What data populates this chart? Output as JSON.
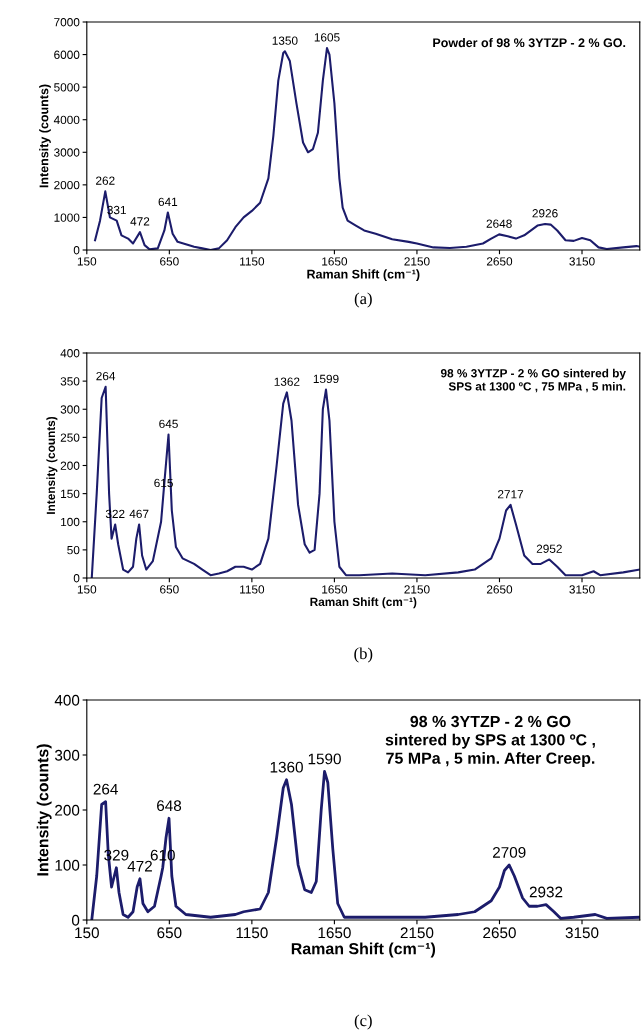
{
  "chart_data": [
    {
      "type": "line",
      "title": "Powder of 98 % 3YTZP - 2 % GO.",
      "xlabel": "Raman Shift (cm⁻¹)",
      "ylabel": "Intensity (counts)",
      "xlim": [
        150,
        3500
      ],
      "xticks": [
        150,
        650,
        1150,
        1650,
        2150,
        2650,
        3150
      ],
      "ylim": [
        0,
        7000
      ],
      "yticks": [
        0,
        1000,
        2000,
        3000,
        4000,
        5000,
        6000,
        7000
      ],
      "grid": false,
      "legend": false,
      "marker": "none",
      "line_style": "solid",
      "series": [
        {
          "color": "#1c1c6b",
          "x": [
            200,
            230,
            262,
            290,
            331,
            360,
            400,
            430,
            472,
            500,
            530,
            580,
            620,
            641,
            670,
            700,
            750,
            800,
            850,
            900,
            950,
            1000,
            1050,
            1100,
            1150,
            1200,
            1250,
            1280,
            1310,
            1340,
            1350,
            1380,
            1420,
            1460,
            1490,
            1520,
            1550,
            1580,
            1605,
            1620,
            1650,
            1680,
            1700,
            1730,
            1780,
            1830,
            1900,
            2000,
            2100,
            2150,
            2250,
            2350,
            2450,
            2550,
            2600,
            2648,
            2700,
            2750,
            2800,
            2880,
            2926,
            2960,
            3000,
            3050,
            3100,
            3150,
            3200,
            3250,
            3300,
            3400,
            3480,
            3500
          ],
          "values": [
            300,
            900,
            1800,
            1000,
            900,
            450,
            350,
            200,
            550,
            150,
            20,
            50,
            600,
            1150,
            500,
            250,
            180,
            100,
            50,
            0,
            50,
            300,
            700,
            1000,
            1200,
            1450,
            2200,
            3500,
            5200,
            6050,
            6100,
            5800,
            4500,
            3300,
            3000,
            3100,
            3600,
            5200,
            6200,
            6000,
            4500,
            2200,
            1300,
            900,
            750,
            600,
            500,
            330,
            250,
            200,
            80,
            60,
            100,
            200,
            350,
            480,
            420,
            350,
            450,
            750,
            800,
            780,
            600,
            300,
            280,
            370,
            300,
            80,
            30,
            80,
            120,
            100
          ]
        }
      ],
      "annotations": [
        "(a)",
        {
          "text": "262",
          "x": 262,
          "y": 1800
        },
        {
          "text": "331",
          "x": 331,
          "y": 900
        },
        {
          "text": "472",
          "x": 472,
          "y": 550
        },
        {
          "text": "641",
          "x": 641,
          "y": 1150
        },
        {
          "text": "1350",
          "x": 1350,
          "y": 6100
        },
        {
          "text": "1605",
          "x": 1605,
          "y": 6200
        },
        {
          "text": "2648",
          "x": 2648,
          "y": 480
        },
        {
          "text": "2926",
          "x": 2926,
          "y": 800
        }
      ]
    },
    {
      "type": "line",
      "title": "98 % 3YTZP - 2 % GO sintered by\nSPS at 1300 ºC , 75 MPa , 5 min.",
      "xlabel": "Raman Shift (cm⁻¹)",
      "ylabel": "Intensity (counts)",
      "xlim": [
        150,
        3500
      ],
      "xticks": [
        150,
        650,
        1150,
        1650,
        2150,
        2650,
        3150
      ],
      "ylim": [
        0,
        400
      ],
      "yticks": [
        0,
        50,
        100,
        150,
        200,
        250,
        300,
        350,
        400
      ],
      "grid": false,
      "legend": false,
      "marker": "none",
      "line_style": "solid",
      "series": [
        {
          "color": "#1c1c6b",
          "x": [
            180,
            210,
            240,
            264,
            285,
            300,
            322,
            340,
            370,
            400,
            430,
            450,
            467,
            485,
            510,
            550,
            600,
            620,
            645,
            665,
            690,
            730,
            800,
            850,
            900,
            950,
            1000,
            1050,
            1100,
            1150,
            1200,
            1250,
            1300,
            1340,
            1362,
            1390,
            1430,
            1470,
            1500,
            1530,
            1560,
            1580,
            1599,
            1620,
            1650,
            1680,
            1720,
            1800,
            2000,
            2200,
            2400,
            2500,
            2600,
            2650,
            2690,
            2717,
            2750,
            2800,
            2850,
            2900,
            2952,
            3000,
            3050,
            3150,
            3220,
            3260,
            3400,
            3500
          ],
          "values": [
            0,
            150,
            320,
            340,
            150,
            70,
            95,
            60,
            15,
            10,
            20,
            70,
            95,
            40,
            15,
            30,
            100,
            170,
            255,
            120,
            55,
            35,
            25,
            15,
            5,
            8,
            12,
            20,
            20,
            15,
            25,
            70,
            200,
            310,
            330,
            280,
            130,
            60,
            45,
            50,
            150,
            300,
            335,
            280,
            100,
            20,
            5,
            5,
            8,
            5,
            10,
            15,
            35,
            70,
            120,
            130,
            95,
            40,
            25,
            25,
            33,
            20,
            5,
            5,
            12,
            5,
            10,
            15
          ]
        }
      ],
      "annotations": [
        "(b)",
        {
          "text": "264",
          "x": 264,
          "y": 340
        },
        {
          "text": "322",
          "x": 322,
          "y": 95
        },
        {
          "text": "467",
          "x": 467,
          "y": 95
        },
        {
          "text": "615",
          "x": 615,
          "y": 150
        },
        {
          "text": "645",
          "x": 645,
          "y": 255
        },
        {
          "text": "1362",
          "x": 1362,
          "y": 330
        },
        {
          "text": "1599",
          "x": 1599,
          "y": 335
        },
        {
          "text": "2717",
          "x": 2717,
          "y": 130
        },
        {
          "text": "2952",
          "x": 2952,
          "y": 33
        }
      ]
    },
    {
      "type": "line",
      "title": "98 % 3YTZP - 2 % GO\nsintered by SPS at 1300 ºC ,\n75 MPa , 5 min. After Creep.",
      "xlabel": "Raman Shift (cm⁻¹)",
      "ylabel": "Intensity (counts)",
      "xlim": [
        150,
        3500
      ],
      "xticks": [
        150,
        650,
        1150,
        1650,
        2150,
        2650,
        3150
      ],
      "ylim": [
        0,
        400
      ],
      "yticks": [
        0,
        100,
        200,
        300,
        400
      ],
      "grid": false,
      "legend": false,
      "marker": "none",
      "line_style": "solid",
      "series": [
        {
          "color": "#1c1c6b",
          "x": [
            180,
            210,
            240,
            264,
            280,
            300,
            329,
            345,
            370,
            400,
            430,
            455,
            472,
            490,
            520,
            560,
            600,
            610,
            630,
            648,
            665,
            690,
            750,
            900,
            1050,
            1100,
            1200,
            1250,
            1300,
            1340,
            1360,
            1390,
            1430,
            1470,
            1510,
            1540,
            1570,
            1590,
            1610,
            1640,
            1670,
            1710,
            1900,
            2200,
            2400,
            2500,
            2600,
            2650,
            2680,
            2709,
            2740,
            2790,
            2830,
            2880,
            2932,
            2980,
            3020,
            3100,
            3230,
            3300,
            3500
          ],
          "values": [
            0,
            80,
            210,
            215,
            120,
            60,
            95,
            50,
            10,
            5,
            15,
            60,
            75,
            30,
            15,
            25,
            80,
            95,
            150,
            185,
            80,
            25,
            10,
            5,
            10,
            15,
            20,
            50,
            150,
            240,
            255,
            210,
            100,
            55,
            50,
            70,
            200,
            270,
            250,
            130,
            30,
            5,
            5,
            5,
            10,
            15,
            35,
            60,
            90,
            100,
            80,
            40,
            25,
            25,
            28,
            15,
            3,
            5,
            10,
            3,
            5
          ]
        }
      ],
      "annotations": [
        "(c)",
        {
          "text": "264",
          "x": 264,
          "y": 215
        },
        {
          "text": "329",
          "x": 329,
          "y": 95
        },
        {
          "text": "472",
          "x": 472,
          "y": 75
        },
        {
          "text": "610",
          "x": 610,
          "y": 95
        },
        {
          "text": "648",
          "x": 648,
          "y": 185
        },
        {
          "text": "1360",
          "x": 1360,
          "y": 255
        },
        {
          "text": "1590",
          "x": 1590,
          "y": 270
        },
        {
          "text": "2709",
          "x": 2709,
          "y": 100
        },
        {
          "text": "2932",
          "x": 2932,
          "y": 28
        }
      ]
    }
  ]
}
